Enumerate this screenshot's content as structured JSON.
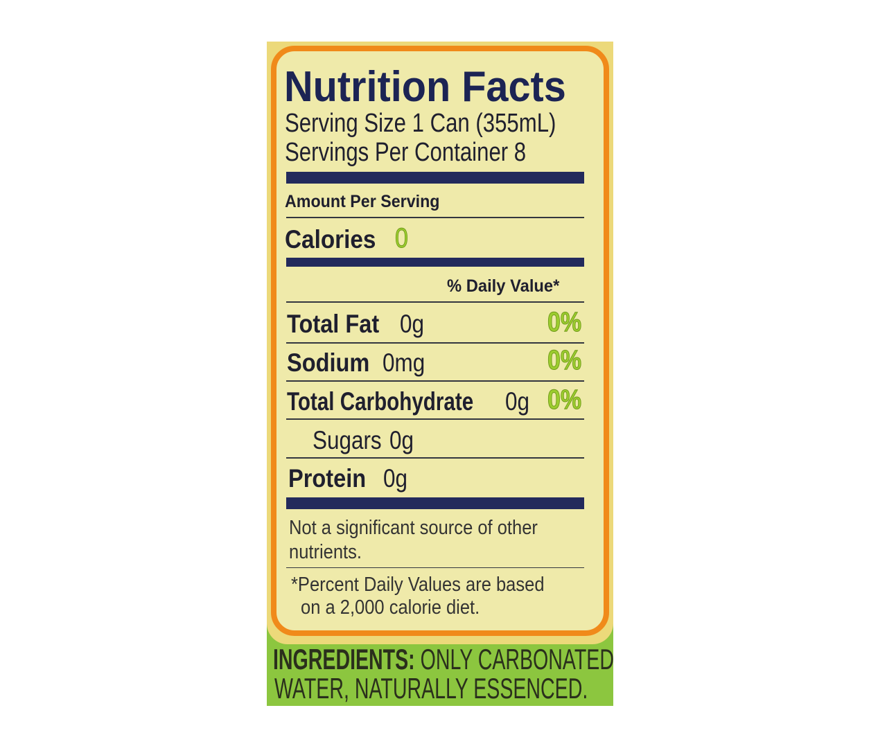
{
  "title": "Nutrition Facts",
  "serving_size": "Serving Size 1 Can (355mL)",
  "servings_per_container": "Servings Per Container  8",
  "amount_per_serving": "Amount Per Serving",
  "calories": {
    "label": "Calories",
    "value": "0"
  },
  "daily_value_header": "% Daily Value*",
  "nutrients": [
    {
      "label": "Total Fat",
      "amount": "0g",
      "dv": "0%"
    },
    {
      "label": "Sodium",
      "amount": "0mg",
      "dv": "0%"
    },
    {
      "label": "Total Carbohydrate",
      "amount": "0g",
      "dv": "0%"
    },
    {
      "label": "Sugars",
      "amount": "0g"
    },
    {
      "label": "Protein",
      "amount": "0g"
    }
  ],
  "note": [
    "Not a significant source of other",
    "nutrients."
  ],
  "footnote": [
    "*Percent Daily Values are based",
    "on a 2,000 calorie diet."
  ],
  "ingredients": {
    "label": "INGREDIENTS:",
    "line1": "ONLY CARBONATED",
    "line2": "WATER, NATURALLY ESSENCED."
  },
  "colors": {
    "navy": "#232a5c",
    "orange": "#f08a1a",
    "green": "#8cc63f",
    "cream": "#efeaaa",
    "accent_green": "#9ccc2e"
  }
}
